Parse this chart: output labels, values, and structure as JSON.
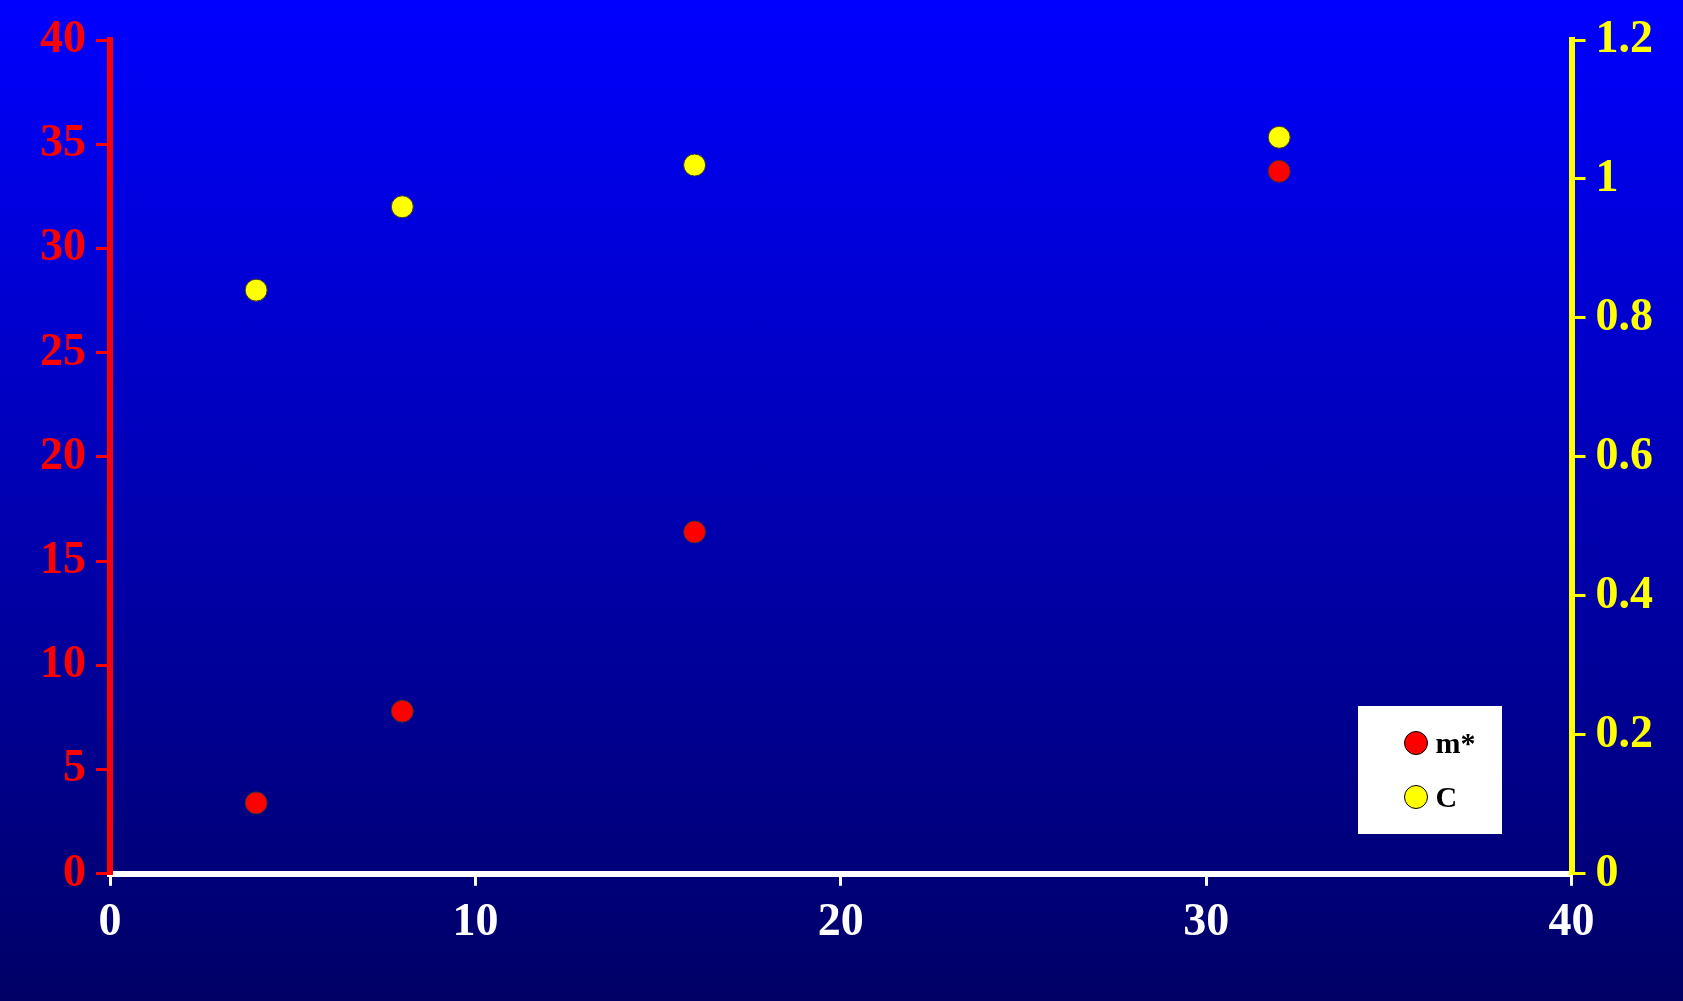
{
  "chart_data": {
    "type": "scatter",
    "x": [
      4,
      8,
      16,
      32
    ],
    "series": [
      {
        "name": "m*",
        "color": "#ff0000",
        "values": [
          3.4,
          7.8,
          16.4,
          33.7
        ]
      },
      {
        "name": "C",
        "color": "#ffff00",
        "axis": "y2",
        "values": [
          0.84,
          0.96,
          1.02,
          1.06
        ]
      }
    ],
    "xlim": [
      0,
      40
    ],
    "xticks": [
      0,
      10,
      20,
      30,
      40
    ],
    "ylim": [
      0,
      40
    ],
    "yticks": [
      0,
      5,
      10,
      15,
      20,
      25,
      30,
      35,
      40
    ],
    "y2lim": [
      0,
      1.2
    ],
    "y2ticks": [
      0,
      0.2,
      0.4,
      0.6,
      0.8,
      1,
      1.2
    ],
    "grid": false,
    "legend": "bottom right",
    "marker": "circle"
  }
}
